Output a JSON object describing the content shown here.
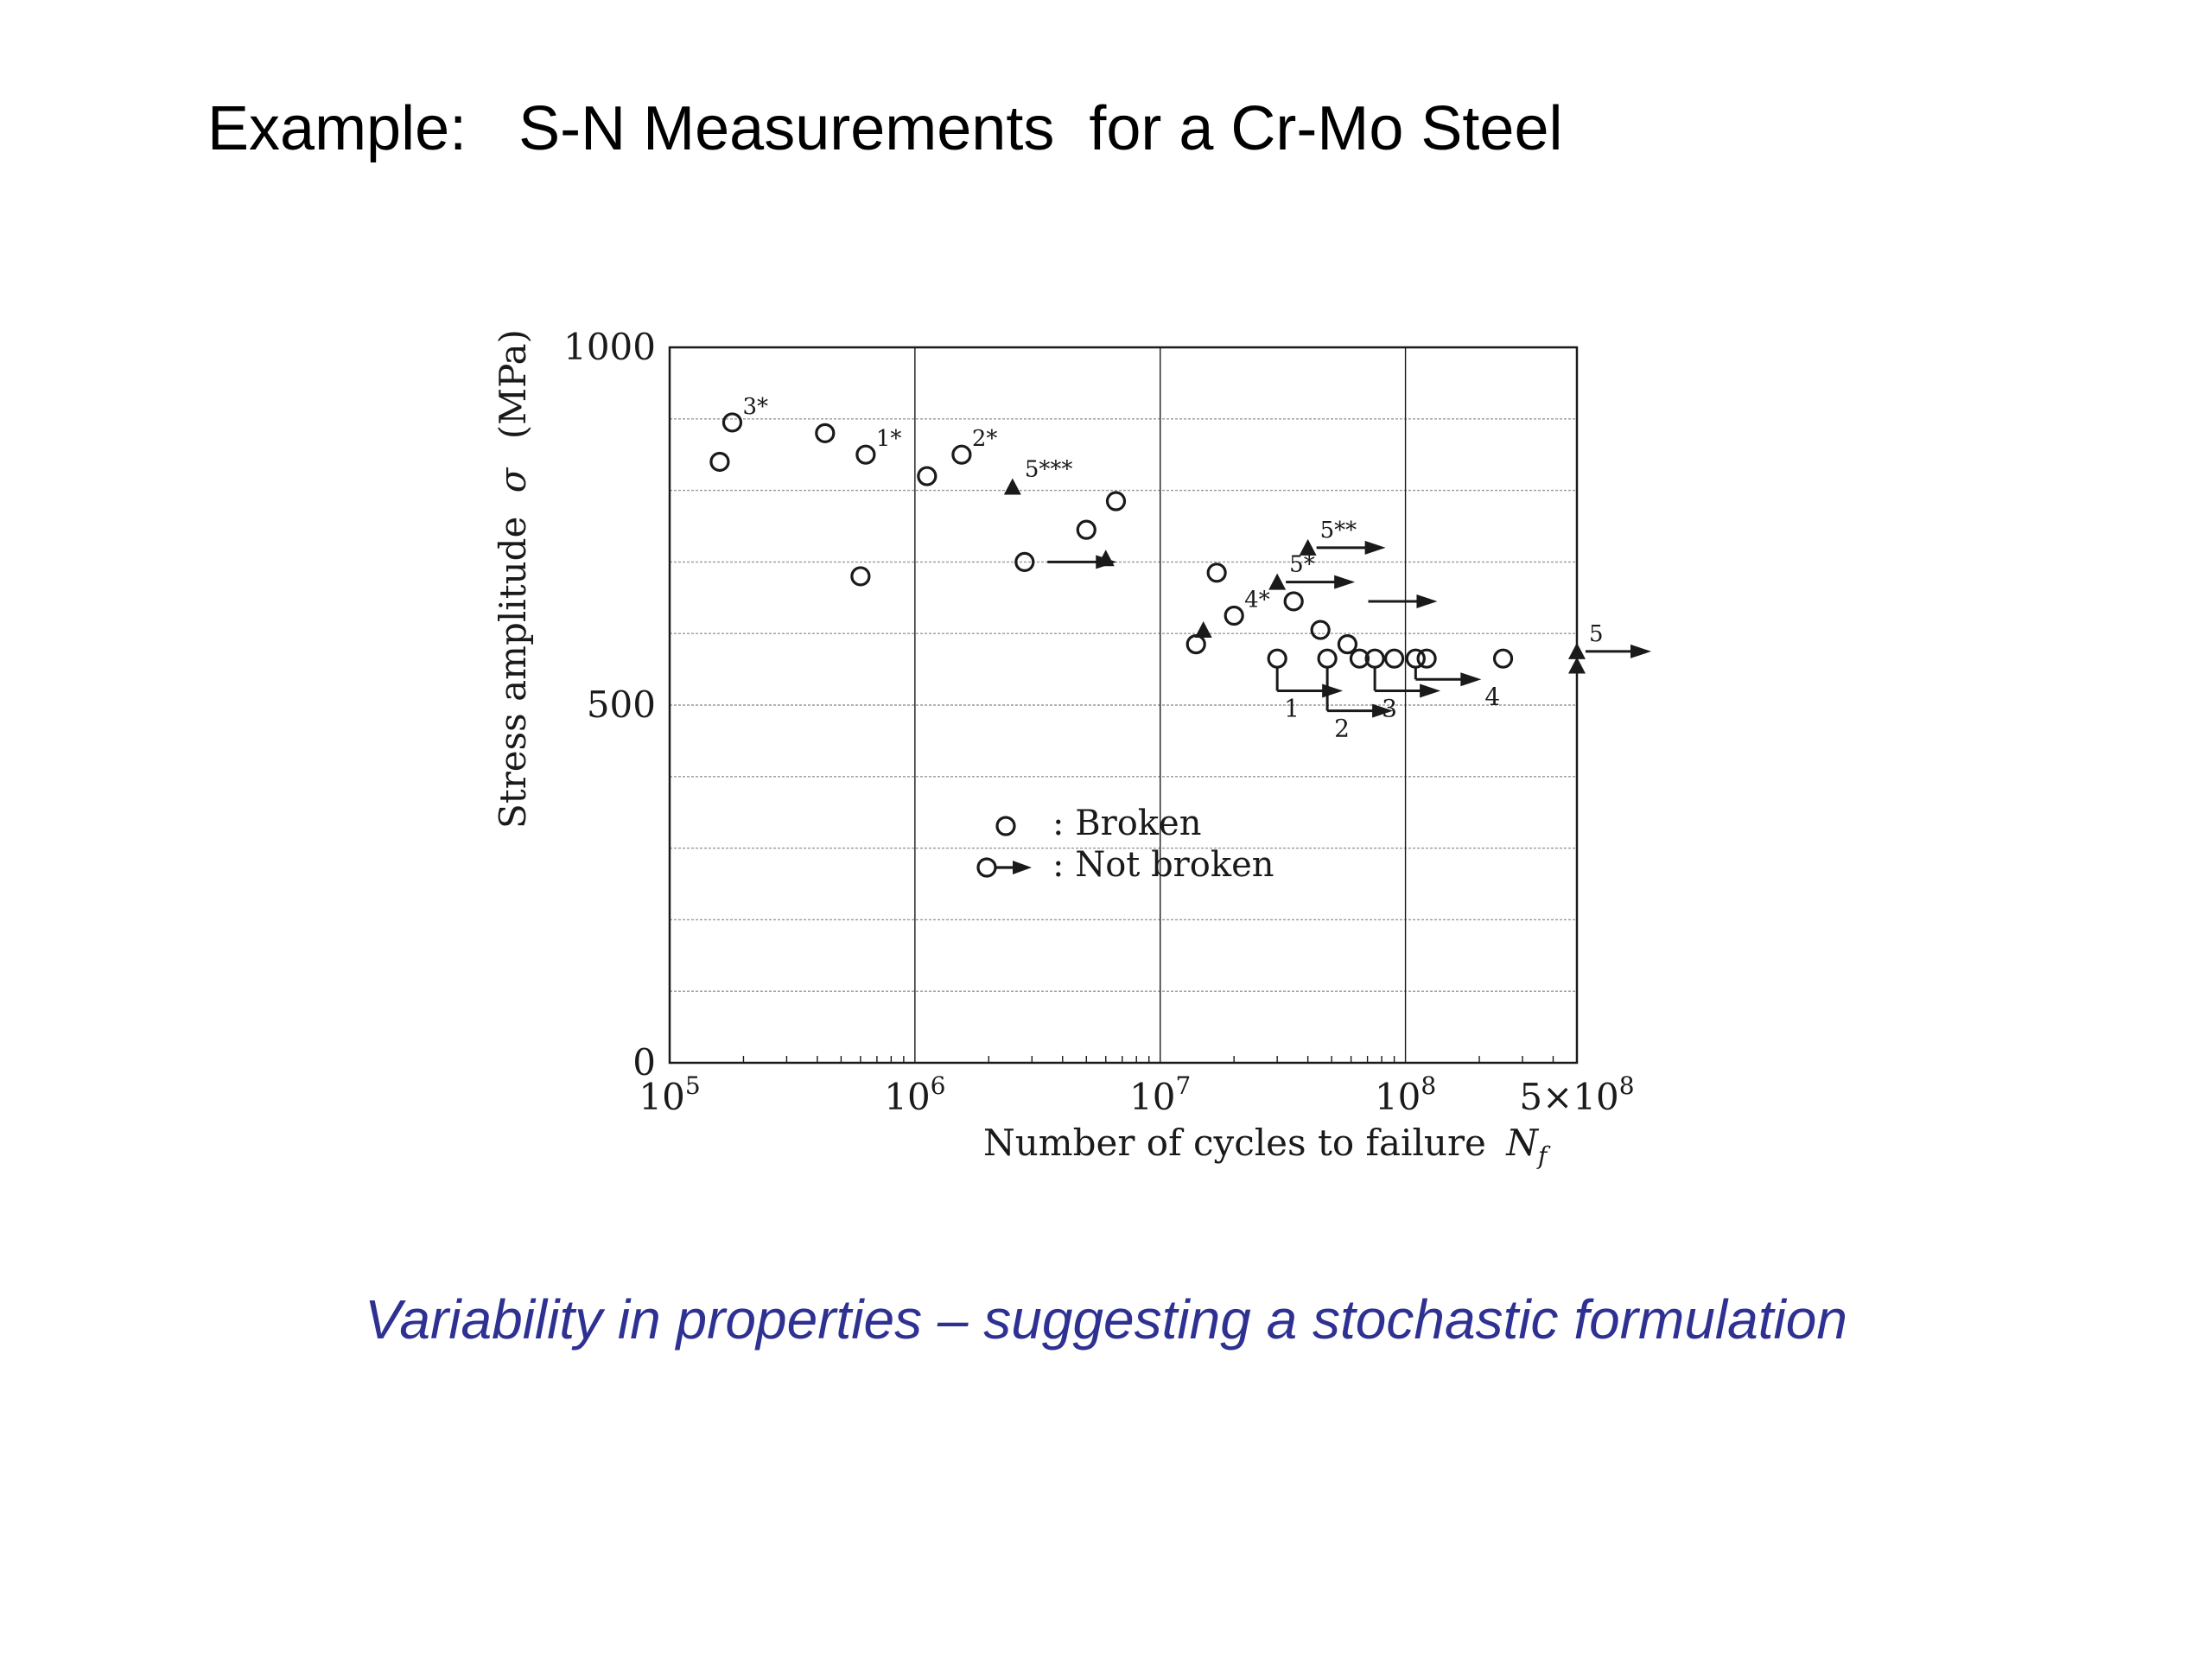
{
  "slide": {
    "title": "Example:   S-N Measurements  for a Cr-Mo Steel",
    "caption": "Variability in properties – suggesting a stochastic formulation"
  },
  "colors": {
    "caption": "#2e3192",
    "ink": "#1a1a1a",
    "grid": "#9a9a9a"
  },
  "chart_data": {
    "type": "scatter",
    "xscale": "log",
    "xlim": [
      100000,
      500000000
    ],
    "ylim": [
      0,
      1000
    ],
    "xlabel": "Number of cycles to failure",
    "xlabel_symbol": "N",
    "xlabel_subscript": "f",
    "ylabel": "Stress amplitude",
    "ylabel_symbol": "σ",
    "ylabel_unit": "(MPa)",
    "grid": true,
    "yticks": [
      {
        "value": 0,
        "label": "0"
      },
      {
        "value": 500,
        "label": "500"
      },
      {
        "value": 1000,
        "label": "1000"
      }
    ],
    "xticks": [
      {
        "value": 100000,
        "mant": "",
        "base": "10",
        "exp": "5"
      },
      {
        "value": 1000000,
        "mant": "",
        "base": "10",
        "exp": "6"
      },
      {
        "value": 10000000,
        "mant": "",
        "base": "10",
        "exp": "7"
      },
      {
        "value": 100000000,
        "mant": "",
        "base": "10",
        "exp": "8"
      },
      {
        "value": 500000000,
        "mant": "5×",
        "base": "10",
        "exp": "8"
      }
    ],
    "legend": {
      "placement": "center-lower",
      "entries": [
        {
          "symbol": "circle",
          "label": ": Broken"
        },
        {
          "symbol": "circle-arrow",
          "label": ": Not broken"
        }
      ]
    },
    "series": [
      {
        "marker": "circle",
        "points": [
          {
            "x": 160000,
            "y": 840,
            "label": ""
          },
          {
            "x": 180000,
            "y": 895,
            "label": "3*"
          },
          {
            "x": 430000,
            "y": 880,
            "label": ""
          },
          {
            "x": 630000,
            "y": 850,
            "label": "1*"
          },
          {
            "x": 600000,
            "y": 680,
            "label": ""
          },
          {
            "x": 1120000,
            "y": 820,
            "label": ""
          },
          {
            "x": 1550000,
            "y": 850,
            "label": "2*"
          },
          {
            "x": 5000000,
            "y": 745,
            "label": ""
          },
          {
            "x": 6600000,
            "y": 785,
            "label": ""
          },
          {
            "x": 17000000,
            "y": 685,
            "label": ""
          },
          {
            "x": 14000000,
            "y": 585,
            "label": ""
          },
          {
            "x": 20000000,
            "y": 625,
            "label": "4*"
          },
          {
            "x": 35000000,
            "y": 645,
            "label": ""
          },
          {
            "x": 45000000,
            "y": 605,
            "label": ""
          },
          {
            "x": 30000000,
            "y": 565,
            "label": ""
          },
          {
            "x": 48000000,
            "y": 565,
            "label": ""
          },
          {
            "x": 58000000,
            "y": 585,
            "label": ""
          },
          {
            "x": 65000000,
            "y": 565,
            "label": ""
          },
          {
            "x": 75000000,
            "y": 565,
            "label": ""
          },
          {
            "x": 90000000,
            "y": 565,
            "label": ""
          },
          {
            "x": 110000000,
            "y": 565,
            "label": ""
          },
          {
            "x": 122000000,
            "y": 565,
            "label": ""
          },
          {
            "x": 250000000,
            "y": 565,
            "label": ""
          },
          {
            "x": 2800000,
            "y": 700,
            "label": ""
          }
        ]
      },
      {
        "marker": "triangle",
        "points": [
          {
            "x": 2500000,
            "y": 805,
            "label": "5***"
          },
          {
            "x": 6000000,
            "y": 705,
            "label": ""
          },
          {
            "x": 15000000,
            "y": 605,
            "label": ""
          },
          {
            "x": 40000000,
            "y": 720,
            "label": "5**"
          },
          {
            "x": 30000000,
            "y": 672,
            "label": "5*"
          },
          {
            "x": 500000000,
            "y": 555,
            "label": ""
          },
          {
            "x": 500000000,
            "y": 575,
            "label": "5"
          }
        ]
      }
    ],
    "runouts": [
      {
        "x": 3200000,
        "y": 700,
        "label": ""
      },
      {
        "x": 40000000,
        "y": 720,
        "label": "5**"
      },
      {
        "x": 30000000,
        "y": 672,
        "label": "5*"
      },
      {
        "x": 500000000,
        "y": 575,
        "label": "5"
      },
      {
        "x": 65000000,
        "y": 645,
        "label": ""
      },
      {
        "x": 30000000,
        "y": 565,
        "label": "1",
        "drop": 520
      },
      {
        "x": 48000000,
        "y": 565,
        "label": "2",
        "drop": 492
      },
      {
        "x": 75000000,
        "y": 565,
        "label": "3",
        "drop": 520
      },
      {
        "x": 110000000,
        "y": 565,
        "label": "4",
        "drop": 536
      }
    ]
  }
}
